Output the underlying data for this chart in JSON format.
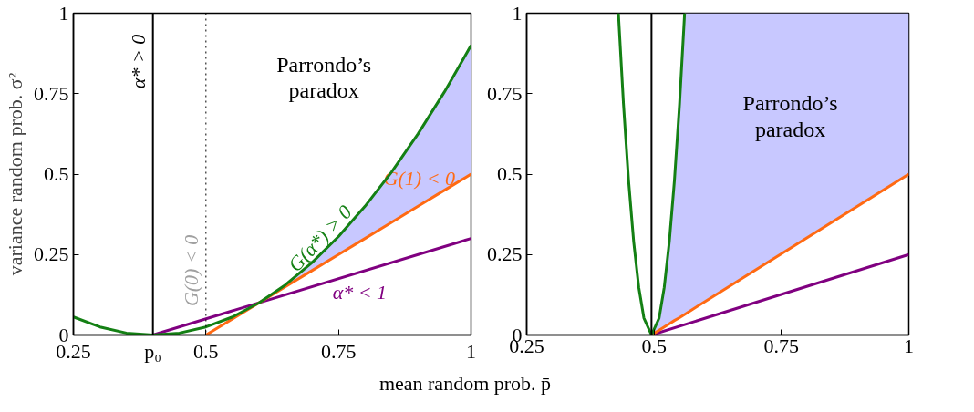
{
  "chart_data": [
    {
      "type": "line",
      "ylabel": "variance random prob. σ²",
      "xlabel": "mean random prob. p̄",
      "xlim": [
        0.25,
        1
      ],
      "ylim": [
        0,
        1
      ],
      "xticks": [
        0.25,
        {
          "value": 0.4,
          "label": "p₀"
        },
        0.5,
        0.75,
        1
      ],
      "yticks": [
        0,
        0.25,
        0.5,
        0.75,
        1
      ],
      "grid": false,
      "legend": false,
      "series": [
        {
          "name": "α* < 1",
          "color": "#800080",
          "x": [
            0.4,
            1
          ],
          "values": [
            0,
            0.3
          ]
        },
        {
          "name": "G(1) < 0",
          "color": "#ff6a13",
          "x": [
            0.5,
            0.6,
            0.65,
            0.7,
            0.75,
            0.8,
            0.85,
            0.9,
            0.95,
            1
          ],
          "values": [
            0,
            0.1,
            0.15,
            0.2,
            0.25,
            0.3,
            0.35,
            0.4,
            0.45,
            0.5
          ],
          "lower": [
            null,
            0.1,
            0.15,
            0.2,
            0.25,
            0.3,
            0.35,
            0.4,
            0.45,
            0.5
          ],
          "upper": [
            null,
            0.1,
            0.156,
            0.225,
            0.306,
            0.4,
            0.506,
            0.625,
            0.756,
            0.9
          ]
        },
        {
          "name": "G(α*) > 0",
          "color": "#148014",
          "x": [
            0.25,
            0.3,
            0.35,
            0.4,
            0.45,
            0.5,
            0.55,
            0.6,
            0.65,
            0.7,
            0.75,
            0.8,
            0.85,
            0.9,
            0.95,
            1
          ],
          "values": [
            0.056,
            0.025,
            0.006,
            0,
            0.006,
            0.025,
            0.056,
            0.1,
            0.156,
            0.225,
            0.306,
            0.4,
            0.506,
            0.625,
            0.756,
            0.9
          ]
        }
      ],
      "ref_lines": [
        {
          "axis": "x",
          "value": 0.4,
          "label": "α* > 0",
          "color": "#000000",
          "line_style": "solid"
        },
        {
          "axis": "x",
          "value": 0.5,
          "label": "G(0) < 0",
          "color": "#000000",
          "line_style": "dotted"
        }
      ],
      "annotations": [
        "Parrondo’s\nparadox"
      ]
    },
    {
      "type": "line",
      "xlim": [
        0.25,
        1
      ],
      "ylim": [
        0,
        1
      ],
      "xticks": [
        0.25,
        0.5,
        0.75,
        1
      ],
      "yticks": [
        0,
        0.25,
        0.5,
        0.75,
        1
      ],
      "grid": false,
      "legend": false,
      "series": [
        {
          "color": "#800080",
          "x": [
            0.495,
            1
          ],
          "values": [
            0,
            0.25
          ]
        },
        {
          "color": "#ff6a13",
          "x": [
            0.495,
            0.51,
            0.52,
            0.53,
            0.54,
            0.55,
            0.56,
            1
          ],
          "values": [
            0,
            0.015,
            0.025,
            0.035,
            0.045,
            0.054,
            0.064,
            0.5
          ],
          "lower": [
            0,
            0.015,
            0.025,
            0.035,
            0.045,
            0.054,
            0.064,
            0.5
          ],
          "upper": [
            0,
            0.053,
            0.148,
            0.29,
            0.48,
            0.717,
            1,
            1
          ]
        },
        {
          "color": "#148014",
          "x": [
            0.43,
            0.44,
            0.45,
            0.46,
            0.47,
            0.48,
            0.495,
            0.51,
            0.52,
            0.53,
            0.54,
            0.55,
            0.56
          ],
          "values": [
            1,
            0.717,
            0.48,
            0.29,
            0.148,
            0.053,
            0,
            0.053,
            0.148,
            0.29,
            0.48,
            0.717,
            1
          ]
        }
      ],
      "ref_lines": [
        {
          "axis": "x",
          "value": 0.495,
          "color": "#000000",
          "line_style": "solid"
        }
      ],
      "annotations": [
        "Parrondo’s\nparadox"
      ]
    }
  ]
}
